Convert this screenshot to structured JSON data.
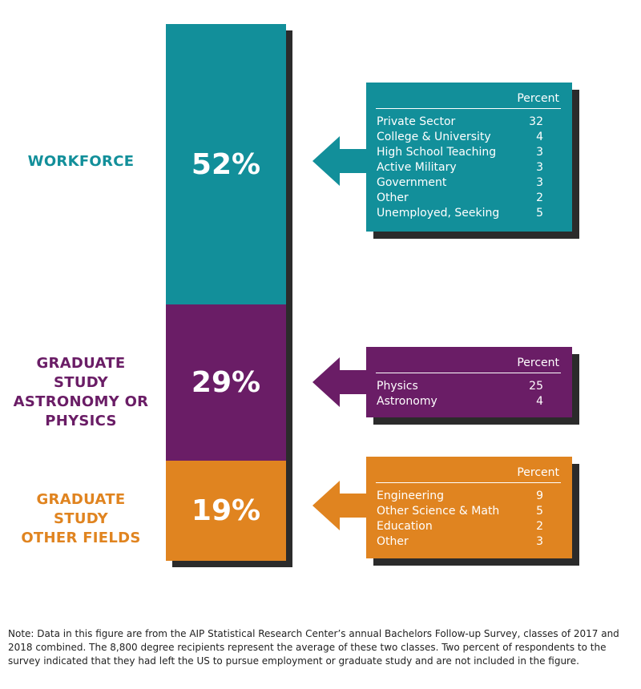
{
  "chart_data": {
    "type": "bar",
    "segments": [
      {
        "label": "WORKFORCE",
        "value": 52,
        "value_label": "52%",
        "color": "#128f9a",
        "breakdown": {
          "header": "Percent",
          "rows": [
            {
              "name": "Private Sector",
              "value": "32"
            },
            {
              "name": "College & University",
              "value": "4"
            },
            {
              "name": "High School Teaching",
              "value": "3"
            },
            {
              "name": "Active Military",
              "value": "3"
            },
            {
              "name": "Government",
              "value": "3"
            },
            {
              "name": "Other",
              "value": "2"
            },
            {
              "name": "Unemployed, Seeking",
              "value": "5"
            }
          ]
        }
      },
      {
        "label": "GRADUATE STUDY ASTRONOMY OR PHYSICS",
        "value": 29,
        "value_label": "29%",
        "color": "#6a1d66",
        "breakdown": {
          "header": "Percent",
          "rows": [
            {
              "name": "Physics",
              "value": "25"
            },
            {
              "name": "Astronomy",
              "value": "4"
            }
          ]
        }
      },
      {
        "label": "GRADUATE STUDY OTHER FIELDS",
        "value": 19,
        "value_label": "19%",
        "color": "#e08420",
        "breakdown": {
          "header": "Percent",
          "rows": [
            {
              "name": "Engineering",
              "value": "9"
            },
            {
              "name": "Other Science & Math",
              "value": "5"
            },
            {
              "name": "Education",
              "value": "2"
            },
            {
              "name": "Other",
              "value": "3"
            }
          ]
        }
      }
    ]
  },
  "labels": {
    "workforce": "WORKFORCE",
    "grad_phys_line1": "GRADUATE STUDY",
    "grad_phys_line2": "ASTRONOMY OR",
    "grad_phys_line3": "PHYSICS",
    "grad_other_line1": "GRADUATE STUDY",
    "grad_other_line2": "OTHER FIELDS"
  },
  "note": "Note: Data in this figure are from the AIP Statistical Research Center’s annual Bachelors Follow-up Survey, classes of 2017 and 2018 combined. The 8,800 degree recipients represent the average of these two classes. Two percent of respondents to the survey indicated that they had left the US to pursue employment or graduate study and are not included in the figure."
}
